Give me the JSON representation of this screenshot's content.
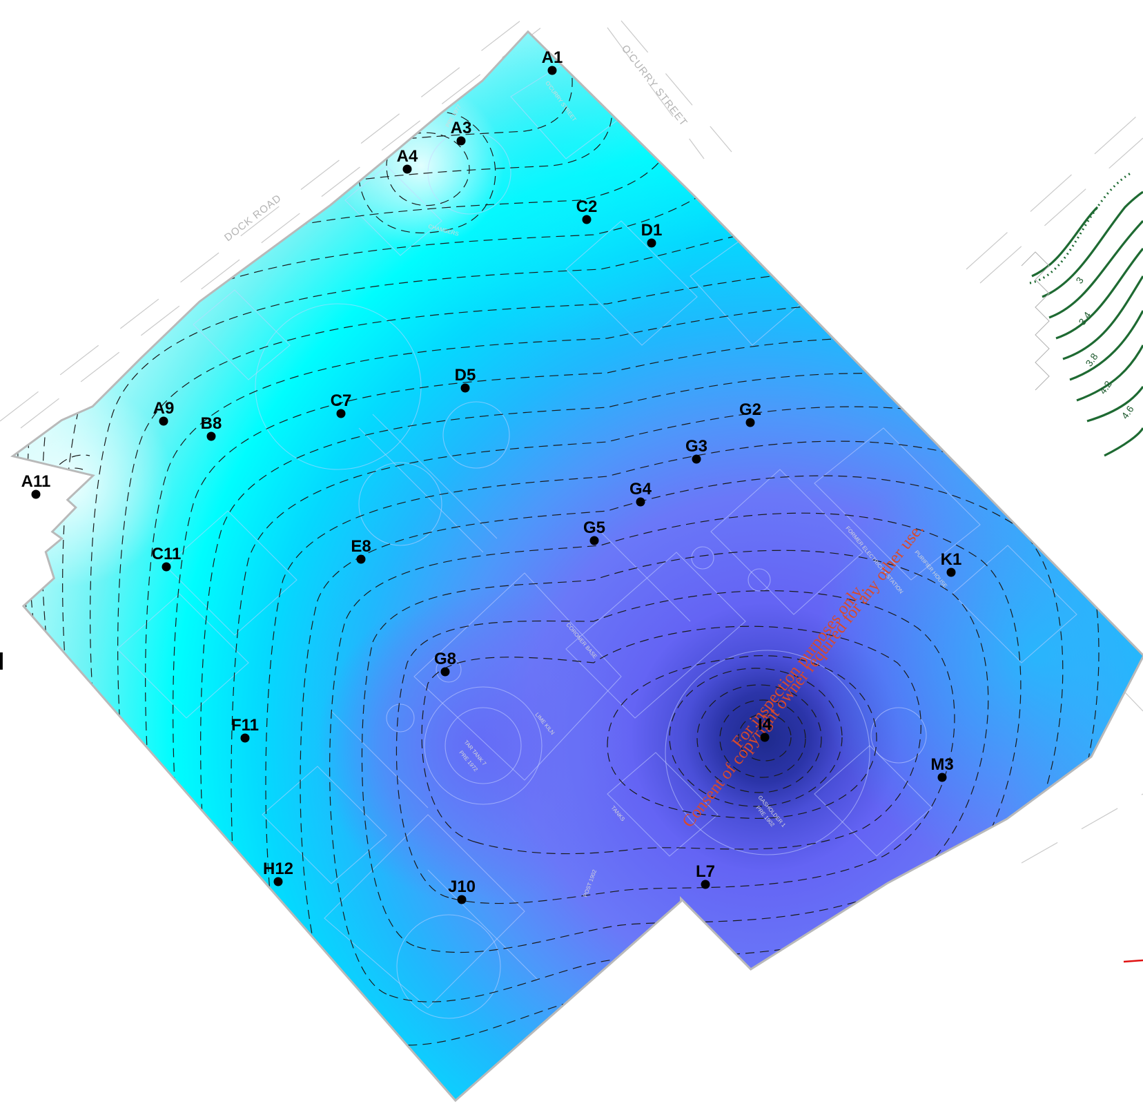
{
  "map": {
    "streets": [
      "DOCK ROAD",
      "O'CURRY STREET"
    ],
    "side_label": "el",
    "points": [
      {
        "id": "A1"
      },
      {
        "id": "A3"
      },
      {
        "id": "A4"
      },
      {
        "id": "C2"
      },
      {
        "id": "D1"
      },
      {
        "id": "D5"
      },
      {
        "id": "A9"
      },
      {
        "id": "B8"
      },
      {
        "id": "C7"
      },
      {
        "id": "G2"
      },
      {
        "id": "G3"
      },
      {
        "id": "G4"
      },
      {
        "id": "A11"
      },
      {
        "id": "G5"
      },
      {
        "id": "E8"
      },
      {
        "id": "C11"
      },
      {
        "id": "K1"
      },
      {
        "id": "G8"
      },
      {
        "id": "F11"
      },
      {
        "id": "H12"
      },
      {
        "id": "J10"
      },
      {
        "id": "L7"
      },
      {
        "id": "M3"
      },
      {
        "id": "I4"
      }
    ],
    "plan_labels": [
      "O'CURRY STREET",
      "CHAMBERS",
      "PRE 1977",
      "TAR TANK 7",
      "PRE 1972",
      "LIME KILN",
      "GASHOLDER 1",
      "PRE 1902",
      "TANKS",
      "FORMER ELECTRICITY STATION",
      "PURIFIER HOUSE",
      "CORONER BASE",
      "POST 1902"
    ],
    "watermark": {
      "line1": "For inspection purposes only.",
      "line2": "Consent of copyright owner required for any other use."
    },
    "legend": {
      "labels": [
        "3",
        "3.4",
        "3.8",
        "4.2",
        "4.6"
      ]
    },
    "colors": {
      "low": "#1e2a8c",
      "mid": "#6d6cf5",
      "cyan": "#00ffff",
      "high": "#e6fdfd",
      "legend_line": "#1e6a32",
      "watermark": "#d94a2a"
    }
  }
}
